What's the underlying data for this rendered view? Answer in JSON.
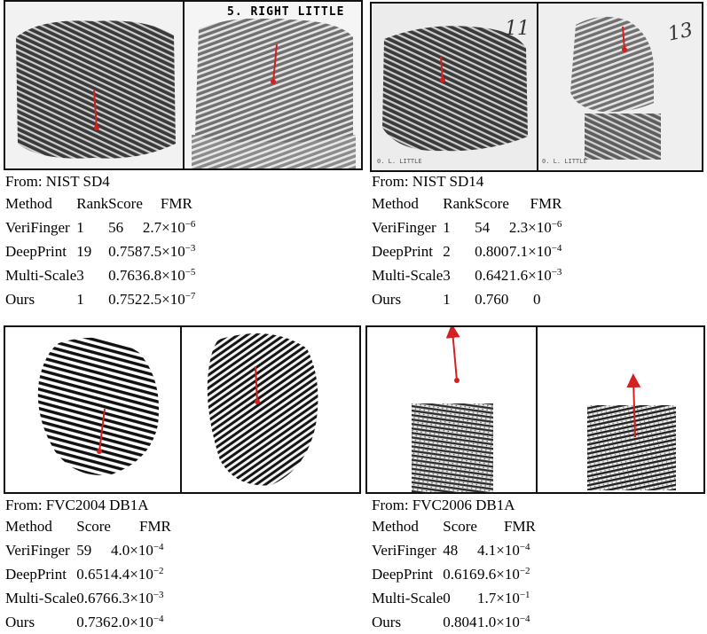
{
  "panels": [
    {
      "source": "From: NIST SD4",
      "image_labels": {
        "left": "",
        "right": "5. RIGHT LITTLE"
      },
      "headers": [
        "Method",
        "Rank",
        "Score",
        "FMR"
      ],
      "rows": [
        {
          "method": "VeriFinger",
          "rank": "1",
          "score": "56",
          "fmr_base": "2.7×10",
          "fmr_exp": "−6"
        },
        {
          "method": "DeepPrint",
          "rank": "19",
          "score": "0.758",
          "fmr_base": "7.5×10",
          "fmr_exp": "−3"
        },
        {
          "method": "Multi-Scale",
          "rank": "3",
          "score": "0.763",
          "fmr_base": "6.8×10",
          "fmr_exp": "−5"
        },
        {
          "method": "Ours",
          "rank": "1",
          "score": "0.752",
          "fmr_base": "2.5×10",
          "fmr_exp": "−7"
        }
      ]
    },
    {
      "source": "From: NIST SD14",
      "image_labels": {
        "left": "0. L. LITTLE",
        "right": "0. L. LITTLE",
        "left_hand": "11",
        "right_hand": "13"
      },
      "headers": [
        "Method",
        "Rank",
        "Score",
        "FMR"
      ],
      "rows": [
        {
          "method": "VeriFinger",
          "rank": "1",
          "score": "54",
          "fmr_base": "2.3×10",
          "fmr_exp": "−6"
        },
        {
          "method": "DeepPrint",
          "rank": "2",
          "score": "0.800",
          "fmr_base": "7.1×10",
          "fmr_exp": "−4"
        },
        {
          "method": "Multi-Scale",
          "rank": "3",
          "score": "0.642",
          "fmr_base": "1.6×10",
          "fmr_exp": "−3"
        },
        {
          "method": "Ours",
          "rank": "1",
          "score": "0.760",
          "fmr_base": "0",
          "fmr_exp": ""
        }
      ]
    },
    {
      "source": "From: FVC2004 DB1A",
      "headers": [
        "Method",
        "Score",
        "FMR"
      ],
      "rows": [
        {
          "method": "VeriFinger",
          "score": "59",
          "fmr_base": "4.0×10",
          "fmr_exp": "−4"
        },
        {
          "method": "DeepPrint",
          "score": "0.651",
          "fmr_base": "4.4×10",
          "fmr_exp": "−2"
        },
        {
          "method": "Multi-Scale",
          "score": "0.676",
          "fmr_base": "6.3×10",
          "fmr_exp": "−3"
        },
        {
          "method": "Ours",
          "score": "0.736",
          "fmr_base": "2.0×10",
          "fmr_exp": "−4"
        }
      ]
    },
    {
      "source": "From: FVC2006 DB1A",
      "headers": [
        "Method",
        "Score",
        "FMR"
      ],
      "rows": [
        {
          "method": "VeriFinger",
          "score": "48",
          "fmr_base": "4.1×10",
          "fmr_exp": "−4"
        },
        {
          "method": "DeepPrint",
          "score": "0.616",
          "fmr_base": "9.6×10",
          "fmr_exp": "−2"
        },
        {
          "method": "Multi-Scale",
          "score": "0",
          "fmr_base": "1.7×10",
          "fmr_exp": "−1"
        },
        {
          "method": "Ours",
          "score": "0.804",
          "fmr_base": "1.0×10",
          "fmr_exp": "−4"
        }
      ]
    }
  ],
  "colors": {
    "pose_arrow": "#d42020",
    "border": "#111111"
  }
}
